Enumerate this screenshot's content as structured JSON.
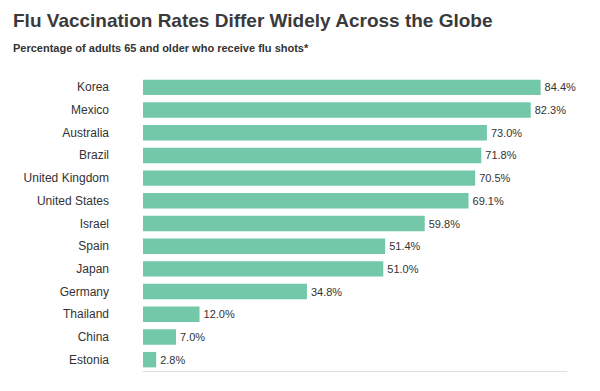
{
  "chart_data": {
    "type": "bar",
    "title": "Flu Vaccination Rates Differ Widely Across the Globe",
    "subtitle": "Percentage of adults 65 and older who receive flu shots*",
    "orientation": "horizontal",
    "categories": [
      "Korea",
      "Mexico",
      "Australia",
      "Brazil",
      "United Kingdom",
      "United States",
      "Israel",
      "Spain",
      "Japan",
      "Germany",
      "Thailand",
      "China",
      "Estonia"
    ],
    "values": [
      84.4,
      82.3,
      73.0,
      71.8,
      70.5,
      69.1,
      59.8,
      51.4,
      51.0,
      34.8,
      12.0,
      7.0,
      2.8
    ],
    "value_labels": [
      "84.4%",
      "82.3%",
      "73.0%",
      "71.8%",
      "70.5%",
      "69.1%",
      "59.8%",
      "51.4%",
      "51.0%",
      "34.8%",
      "12.0%",
      "7.0%",
      "2.8%"
    ],
    "color": "#72c8a8",
    "xlim": [
      0,
      90
    ],
    "grid": false,
    "data_labels": true,
    "tick_labels": "y"
  }
}
